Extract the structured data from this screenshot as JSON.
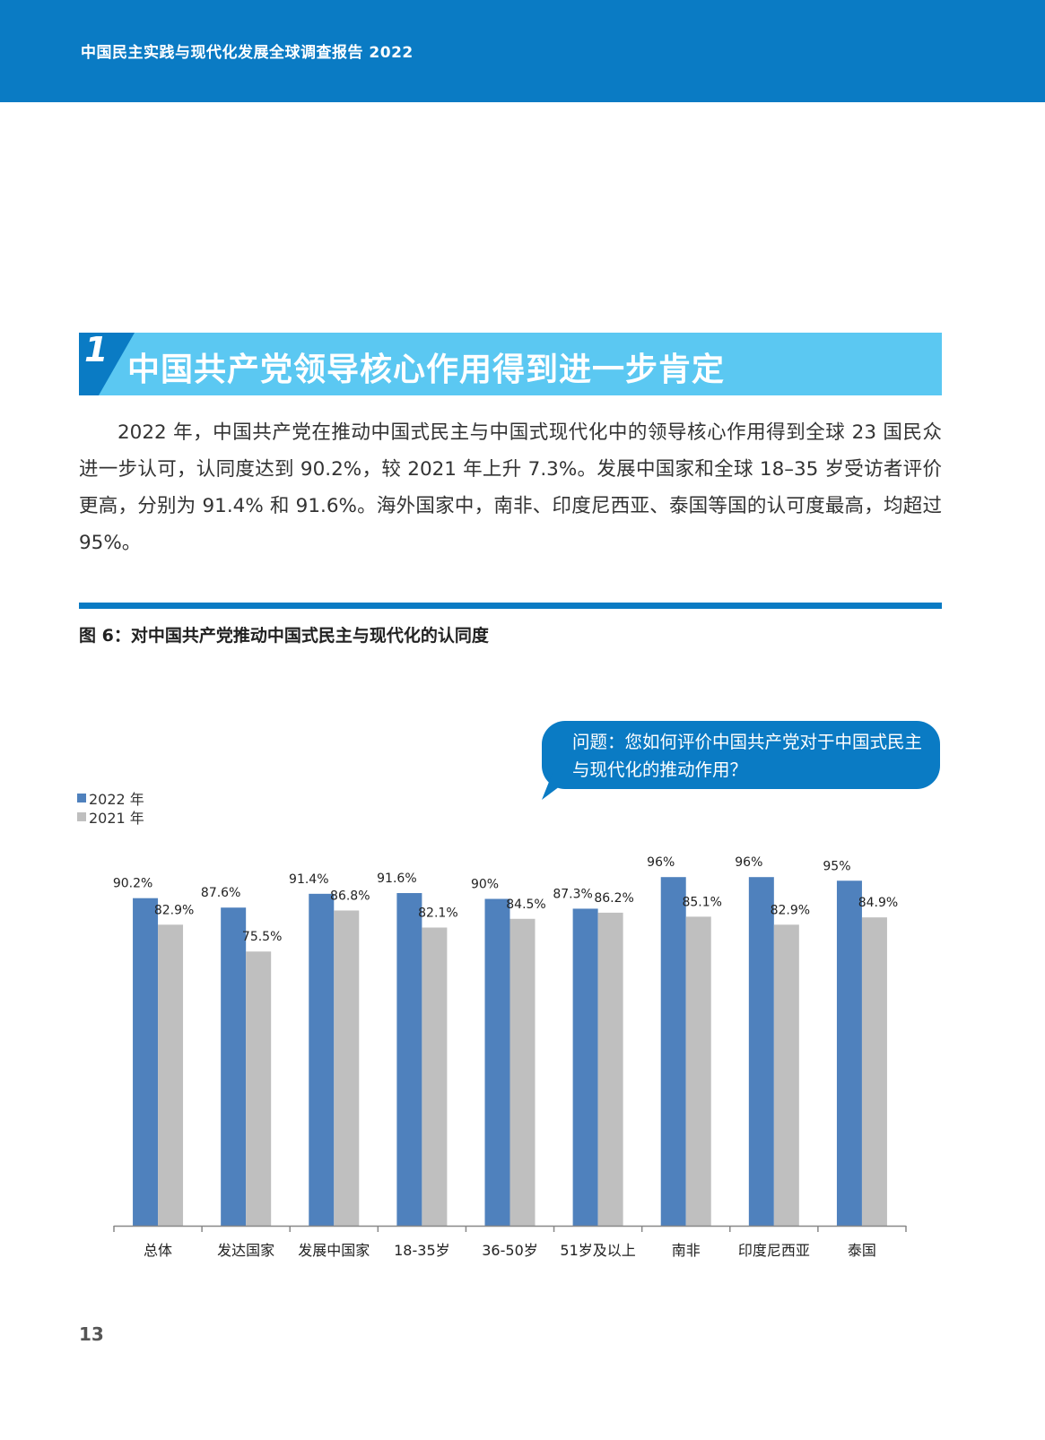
{
  "header": {
    "title": "中国民主实践与现代化发展全球调查报告 2022"
  },
  "section": {
    "number": "1",
    "title": "中国共产党领导核心作用得到进一步肯定"
  },
  "body": {
    "paragraph": "2022 年，中国共产党在推动中国式民主与中国式现代化中的领导核心作用得到全球 23 国民众进一步认可，认同度达到 90.2%，较 2021 年上升 7.3%。发展中国家和全球 18–35 岁受访者评价更高，分别为 91.4% 和 91.6%。海外国家中，南非、印度尼西亚、泰国等国的认可度最高，均超过 95%。"
  },
  "figure": {
    "caption": "图 6：对中国共产党推动中国式民主与现代化的认同度",
    "question": "问题：您如何评价中国共产党对于中国式民主与现代化的推动作用？"
  },
  "colors": {
    "header": "#0a7bc4",
    "banner": "#5bc8f2",
    "series_2022": "#4f81bd",
    "series_2021": "#bfbfbf"
  },
  "chart_data": {
    "type": "bar",
    "title": "",
    "xlabel": "",
    "ylabel": "",
    "ylim": [
      0,
      100
    ],
    "grid": false,
    "legend_position": "top-left",
    "categories": [
      "总体",
      "发达国家",
      "发展中国家",
      "18-35岁",
      "36-50岁",
      "51岁及以上",
      "南非",
      "印度尼西亚",
      "泰国"
    ],
    "series": [
      {
        "name": "2022 年",
        "values": [
          90.2,
          87.6,
          91.4,
          91.6,
          90,
          87.3,
          96,
          96,
          95
        ],
        "labels": [
          "90.2%",
          "87.6%",
          "91.4%",
          "91.6%",
          "90%",
          "87.3%",
          "96%",
          "96%",
          "95%"
        ]
      },
      {
        "name": "2021 年",
        "values": [
          82.9,
          75.5,
          86.8,
          82.1,
          84.5,
          86.2,
          85.1,
          82.9,
          84.9
        ],
        "labels": [
          "82.9%",
          "75.5%",
          "86.8%",
          "82.1%",
          "84.5%",
          "86.2%",
          "85.1%",
          "82.9%",
          "84.9%"
        ]
      }
    ]
  },
  "page": {
    "number": "13"
  }
}
